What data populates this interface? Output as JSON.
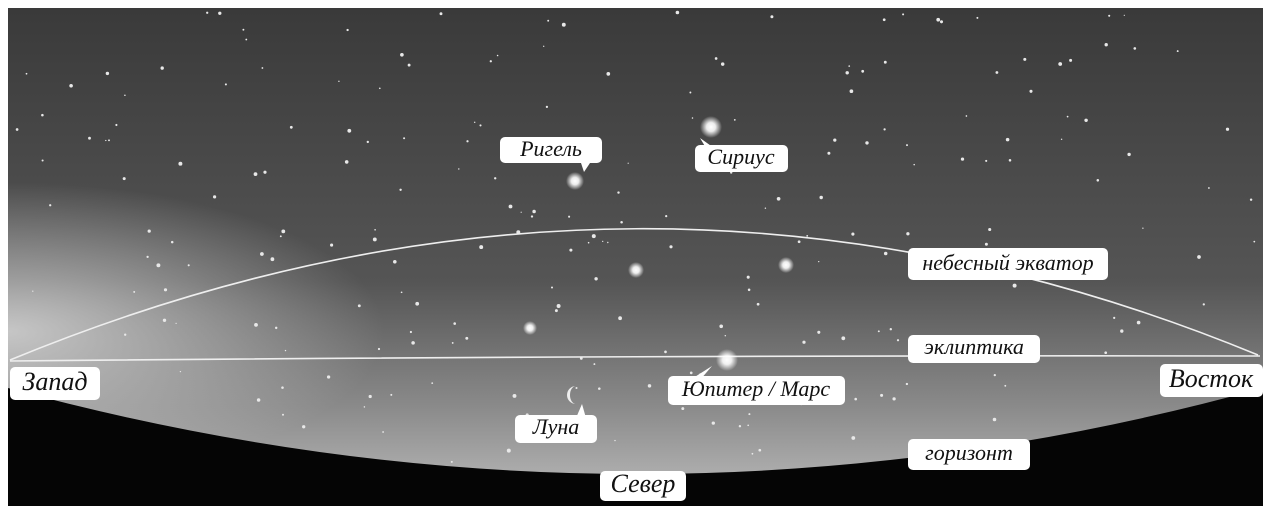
{
  "labels": [
    "Ригель",
    "Сириус",
    "небесный экватор",
    "эклиптика",
    "Запад",
    "Восток",
    "Юпитер / Марс",
    "Луна",
    "горизонт",
    "Север"
  ]
}
